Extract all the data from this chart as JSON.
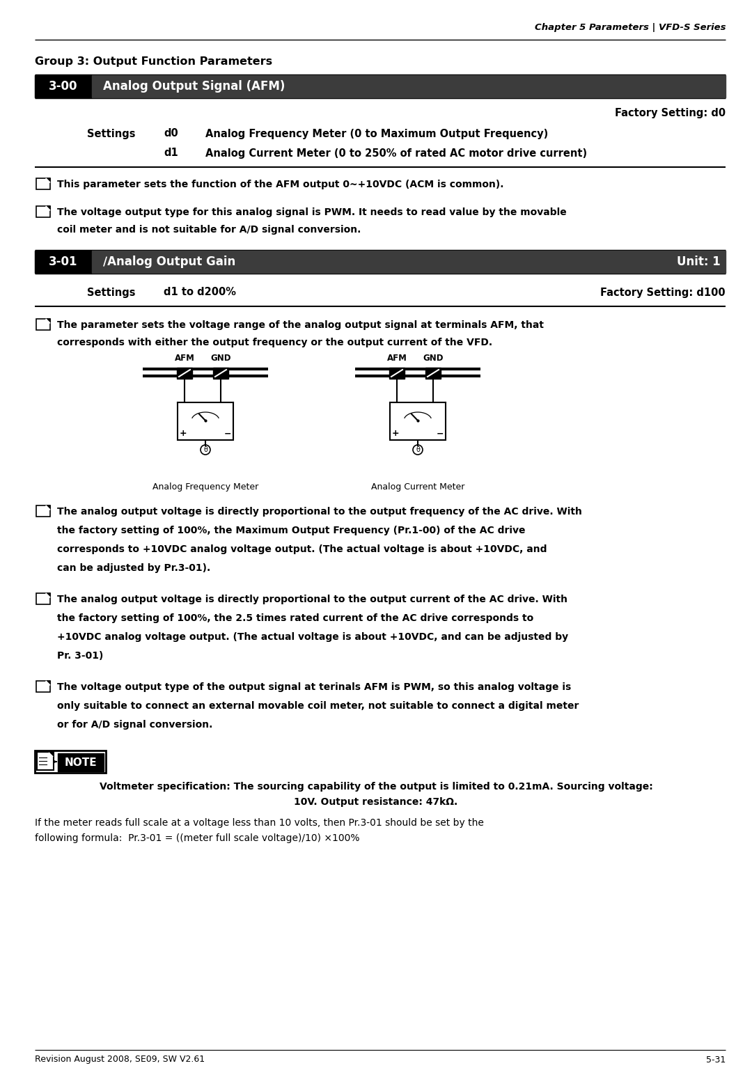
{
  "page_header": "Chapter 5 Parameters | VFD-S Series",
  "group_title": "Group 3: Output Function Parameters",
  "param_300_num": "3-00",
  "param_300_name": "Analog Output Signal (AFM)",
  "param_300_factory": "Factory Setting: d0",
  "settings_label": "Settings",
  "param_300_d0_code": "d0",
  "param_300_d0_desc": "Analog Frequency Meter (0 to Maximum Output Frequency)",
  "param_300_d1_code": "d1",
  "param_300_d1_desc": "Analog Current Meter (0 to 250% of rated AC motor drive current)",
  "bullet1_300": "This parameter sets the function of the AFM output 0~+10VDC (ACM is common).",
  "bullet2_300_l1": "The voltage output type for this analog signal is PWM. It needs to read value by the movable",
  "bullet2_300_l2": "coil meter and is not suitable for A/D signal conversion.",
  "param_301_num": "3-01",
  "param_301_name": "∕Analog Output Gain",
  "param_301_unit": "Unit: 1",
  "param_301_range": "d1 to d200%",
  "param_301_factory": "Factory Setting: d100",
  "bullet1_301_l1": "The parameter sets the voltage range of the analog output signal at terminals AFM, that",
  "bullet1_301_l2": "corresponds with either the output frequency or the output current of the VFD.",
  "label_afm": "AFM",
  "label_gnd": "GND",
  "label_freq_meter": "Analog Frequency Meter",
  "label_curr_meter": "Analog Current Meter",
  "bullet2_301_l1": "The analog output voltage is directly proportional to the output frequency of the AC drive. With",
  "bullet2_301_l2": "the factory setting of 100%, the Maximum Output Frequency (Pr.1-00) of the AC drive",
  "bullet2_301_l3": "corresponds to +10VDC analog voltage output. (The actual voltage is about +10VDC, and",
  "bullet2_301_l4": "can be adjusted by Pr.3-01).",
  "bullet3_301_l1": "The analog output voltage is directly proportional to the output current of the AC drive. With",
  "bullet3_301_l2": "the factory setting of 100%, the 2.5 times rated current of the AC drive corresponds to",
  "bullet3_301_l3": "+10VDC analog voltage output. (The actual voltage is about +10VDC, and can be adjusted by",
  "bullet3_301_l4": "Pr. 3-01)",
  "bullet4_301_l1": "The voltage output type of the output signal at terinals AFM is PWM, so this analog voltage is",
  "bullet4_301_l2": "only suitable to connect an external movable coil meter, not suitable to connect a digital meter",
  "bullet4_301_l3": "or for A/D signal conversion.",
  "note_l1": "Voltmeter specification: The sourcing capability of the output is limited to 0.21mA. Sourcing voltage:",
  "note_l2": "10V. Output resistance: 47kΩ.",
  "note_l3": "If the meter reads full scale at a voltage less than 10 volts, then Pr.3-01 should be set by the",
  "note_l4": "following formula:  Pr.3-01 = ((meter full scale voltage)/10) ×100%",
  "footer_left": "Revision August 2008, SE09, SW V2.61",
  "footer_right": "5-31",
  "bg_color": "#ffffff"
}
